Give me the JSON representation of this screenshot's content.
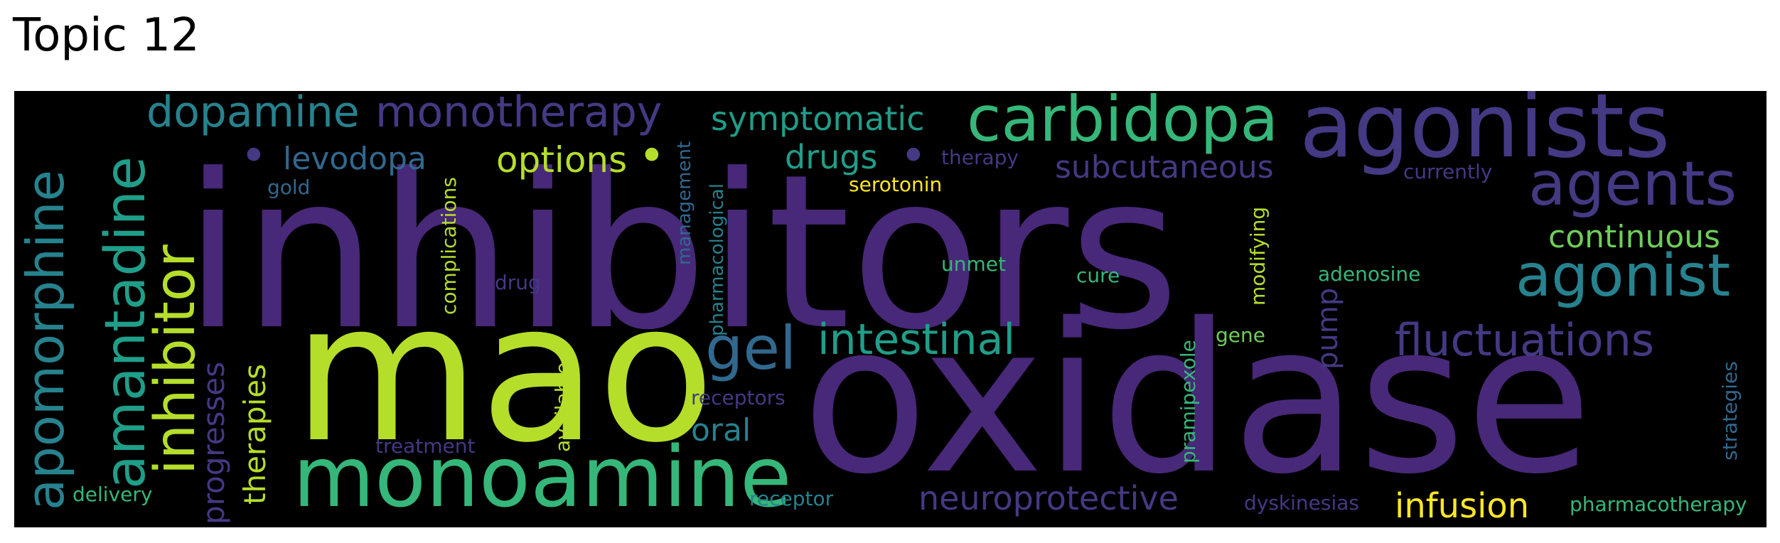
{
  "title": "Topic 12",
  "words": {
    "inhibitors": "inhibitors",
    "oxidase": "oxidase",
    "mao": "mao",
    "agonists": "agonists",
    "monoamine": "monoamine",
    "carbidopa": "carbidopa",
    "amantadine": "amantadine",
    "apomorphine": "apomorphine",
    "inhibitor": "inhibitor",
    "agents": "agents",
    "agonist": "agonist",
    "monotherapy": "monotherapy",
    "dopamine": "dopamine",
    "fluctuations": "fluctuations",
    "gel": "gel",
    "intestinal": "intestinal",
    "neuroprotective": "neuroprotective",
    "symptomatic": "symptomatic",
    "levodopa": "levodopa",
    "options": "options",
    "drugs": "drugs",
    "subcutaneous": "subcutaneous",
    "continuous": "continuous",
    "infusion": "infusion",
    "therapies": "therapies",
    "progresses": "progresses",
    "oral": "oral",
    "pump": "pump",
    "complications": "complications",
    "management": "management",
    "pharmacological": "pharmacological",
    "serotonin": "serotonin",
    "therapy": "therapy",
    "currently": "currently",
    "unmet": "unmet",
    "cure": "cure",
    "adenosine": "adenosine",
    "modifying": "modifying",
    "pramipexole": "pramipexole",
    "gene": "gene",
    "drug": "drug",
    "gold": "gold",
    "receptors": "receptors",
    "receptor": "receptor",
    "available": "available",
    "treatment": "treatment",
    "delivery": "delivery",
    "dyskinesias": "dyskinesias",
    "pharmacotherapy": "pharmacotherapy",
    "strategies": "strategies",
    "dot": "•"
  },
  "colors": {
    "background": "#000000",
    "dark_purple": "#482878",
    "purple": "#443983",
    "indigo": "#3e4989",
    "blue": "#31688e",
    "teal": "#26828e",
    "green_teal": "#1f9e89",
    "green": "#35b779",
    "light_green": "#6ece58",
    "lime": "#b5de2b",
    "yellow": "#fde725"
  }
}
